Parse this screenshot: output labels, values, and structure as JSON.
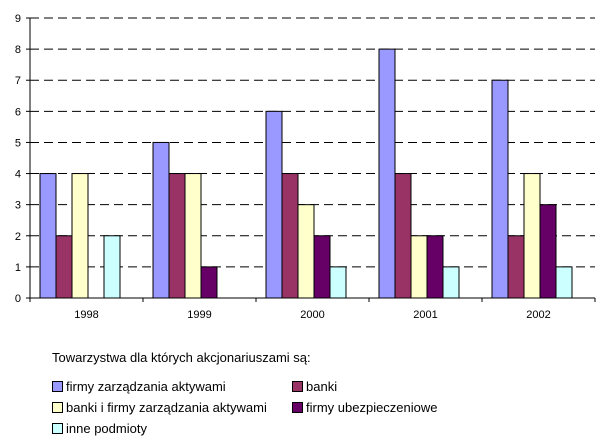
{
  "chart_data": {
    "type": "bar",
    "categories": [
      "1998",
      "1999",
      "2000",
      "2001",
      "2002"
    ],
    "series": [
      {
        "name": "firmy zarządzania aktywami",
        "color": "#9999ff",
        "values": [
          4,
          5,
          6,
          8,
          7
        ]
      },
      {
        "name": "banki",
        "color": "#993366",
        "values": [
          2,
          4,
          4,
          4,
          2
        ]
      },
      {
        "name": "banki i firmy zarządzania aktywami",
        "color": "#ffffcc",
        "values": [
          4,
          4,
          3,
          2,
          4
        ]
      },
      {
        "name": "firmy ubezpieczeniowe",
        "color": "#660066",
        "values": [
          0,
          1,
          2,
          2,
          3
        ]
      },
      {
        "name": "inne podmioty",
        "color": "#ccffff",
        "values": [
          2,
          0,
          1,
          1,
          1
        ]
      }
    ],
    "y_ticks": [
      "0",
      "1",
      "2",
      "3",
      "4",
      "5",
      "6",
      "7",
      "8",
      "9"
    ],
    "ylim": [
      0,
      9
    ],
    "grid": "dashed horizontal",
    "legend": {
      "title": "Towarzystwa dla których akcjonariuszami są:",
      "placement": "bottom-left"
    }
  }
}
